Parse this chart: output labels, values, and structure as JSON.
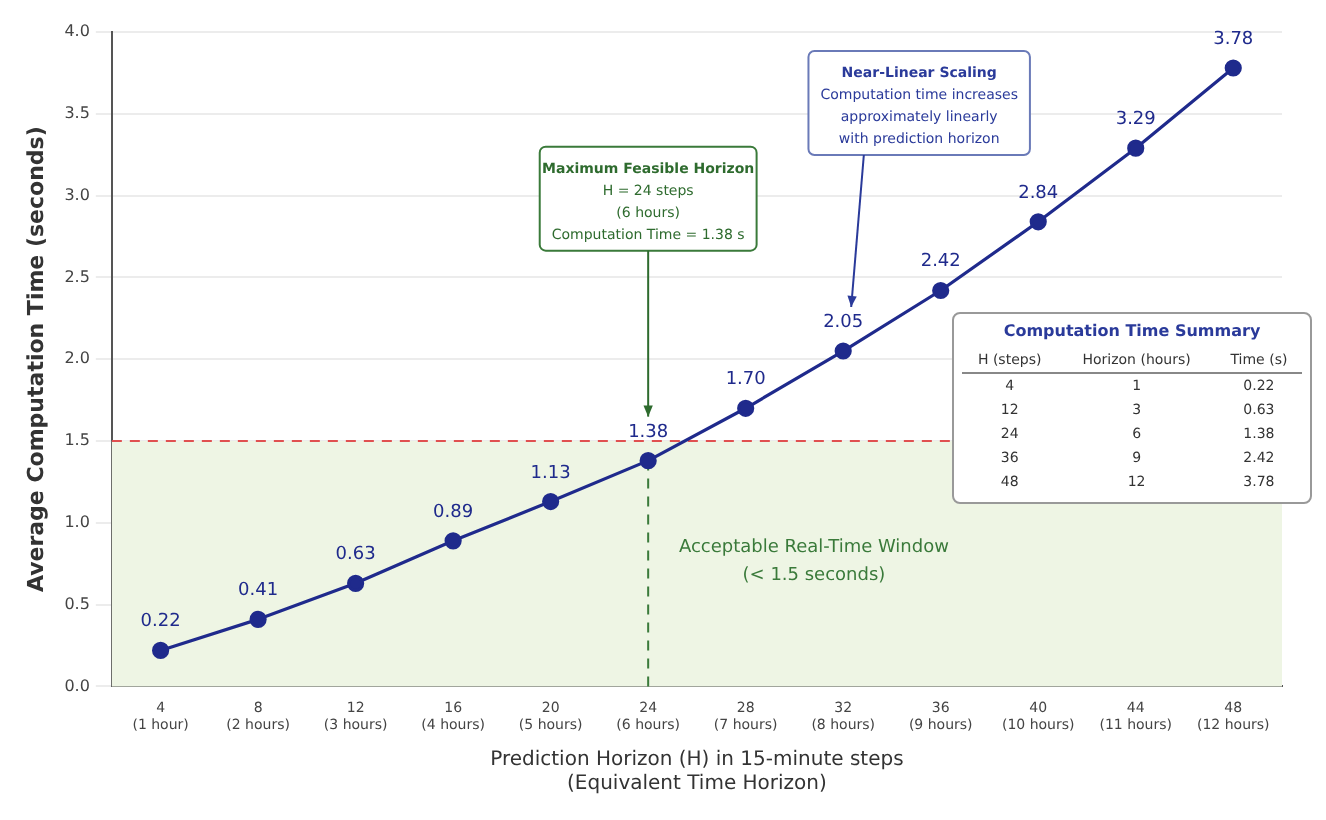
{
  "chart_data": {
    "type": "line",
    "xlabel": "Prediction Horizon (H) in 15-minute steps\n(Equivalent Time Horizon)",
    "ylabel": "Average Computation Time (seconds)",
    "categories": [
      "4\n(1 hour)",
      "8\n(2 hours)",
      "12\n(3 hours)",
      "16\n(4 hours)",
      "20\n(5 hours)",
      "24\n(6 hours)",
      "28\n(7 hours)",
      "32\n(8 hours)",
      "36\n(9 hours)",
      "40\n(10 hours)",
      "44\n(11 hours)",
      "48\n(12 hours)"
    ],
    "series": [
      {
        "color": "#1f2a8c",
        "values": [
          0.22,
          0.41,
          0.63,
          0.89,
          1.13,
          1.38,
          1.7,
          2.05,
          2.42,
          2.84,
          3.29,
          3.78
        ]
      }
    ],
    "value_labels": [
      "0.22",
      "0.41",
      "0.63",
      "0.89",
      "1.13",
      "1.38",
      "1.70",
      "2.05",
      "2.42",
      "2.84",
      "3.29",
      "3.78"
    ],
    "ylim": [
      0,
      4
    ],
    "yticks": [
      {
        "value": 0,
        "label": "0.0"
      },
      0.5,
      {
        "value": 1,
        "label": "1.0"
      },
      1.5,
      {
        "value": 2,
        "label": "2.0"
      },
      2.5,
      {
        "value": 3,
        "label": "3.0"
      },
      3.5,
      {
        "value": 4,
        "label": "4.0"
      }
    ],
    "grid": "y",
    "marker": "circle",
    "line_style": "solid",
    "legend": false,
    "ref_lines": [
      {
        "axis": "y",
        "value": 1.5,
        "color": "#e05050",
        "line_style": "dashed"
      },
      {
        "axis": "x",
        "value": "24\n(6 hours)",
        "color": "#3a7a3a",
        "line_style": "dashed"
      }
    ],
    "bands": [
      {
        "axis": "y",
        "from": 0,
        "to": 1.5,
        "label": "Acceptable Real-Time Window\n(< 1.5 seconds)",
        "color": "#eef5e4"
      }
    ],
    "annotations": [
      "Maximum Feasible Horizon\nH = 24 steps\n(6 hours)\nComputation Time = 1.38 s",
      "Near-Linear Scaling\nComputation time increases\napproximately linearly\nwith prediction horizon",
      "Computation Time Summary",
      "H (steps)\tHorizon (hours)\tTime (s)",
      "4\t1\t0.22",
      "12\t3\t0.63",
      "24\t6\t1.38",
      "36\t9\t2.42",
      "48\t12\t3.78"
    ]
  }
}
